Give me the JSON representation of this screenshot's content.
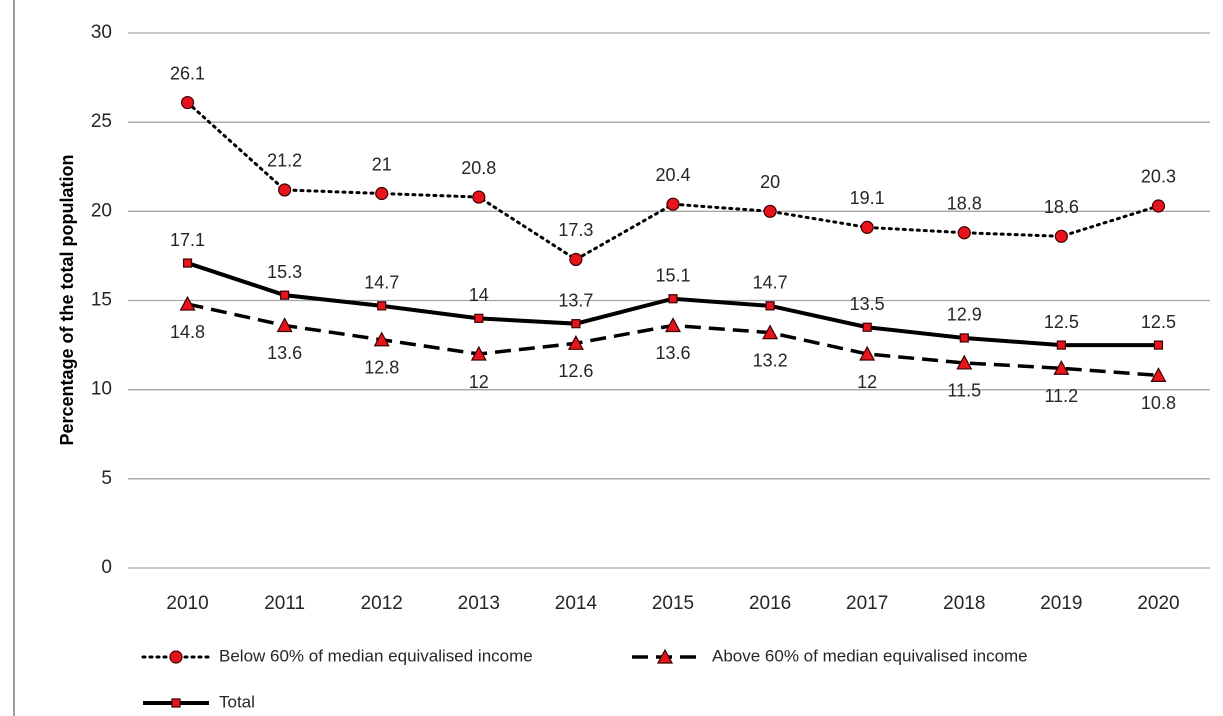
{
  "chart_data": {
    "type": "line",
    "y_label": "Percentage of the total population",
    "categories": [
      "2010",
      "2011",
      "2012",
      "2013",
      "2014",
      "2015",
      "2016",
      "2017",
      "2018",
      "2019",
      "2020"
    ],
    "series": [
      {
        "name": "Below 60% of median equivalised income",
        "color": "#000000",
        "marker_color": "#e8141c",
        "line_style": "dotted",
        "marker": "circle",
        "label_position": "above",
        "values": [
          26.1,
          21.2,
          21,
          20.8,
          17.3,
          20.4,
          20,
          19.1,
          18.8,
          18.6,
          20.3
        ]
      },
      {
        "name": "Above 60% of median equivalised income",
        "color": "#000000",
        "marker_color": "#e8141c",
        "line_style": "dashed",
        "marker": "triangle",
        "label_position": "below",
        "values": [
          14.8,
          13.6,
          12.8,
          12,
          12.6,
          13.6,
          13.2,
          12,
          11.5,
          11.2,
          10.8
        ]
      },
      {
        "name": "Total",
        "color": "#000000",
        "marker_color": "#e8141c",
        "line_style": "solid",
        "marker": "square",
        "label_position": "above",
        "values": [
          17.1,
          15.3,
          14.7,
          14,
          13.7,
          15.1,
          14.7,
          13.5,
          12.9,
          12.5,
          12.5
        ]
      }
    ],
    "ylim": [
      0,
      30
    ],
    "yticks": [
      0,
      5,
      10,
      15,
      20,
      25,
      30
    ],
    "grid": true,
    "legend": "bottom"
  }
}
